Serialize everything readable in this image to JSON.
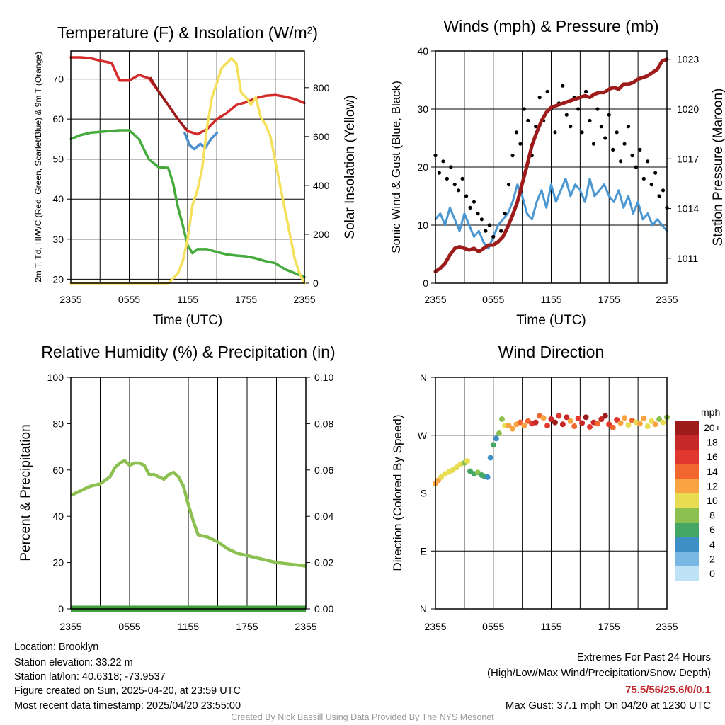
{
  "chart_data": [
    {
      "type": "line",
      "title": "Temperature (F) & Insolation (W/m²)",
      "xlabel": "Time (UTC)",
      "ylabel": "2m T, Td, HI/WC (Red, Green, Scarlet/Blue) & 9m T (Orange)",
      "ylabel2": "Solar Insolation (Yellow)",
      "ylim": [
        19,
        77
      ],
      "yticks": [
        20,
        30,
        40,
        50,
        60,
        70
      ],
      "ylim2": [
        0,
        950
      ],
      "yticks2": [
        0,
        200,
        400,
        600,
        800
      ],
      "x_ticks": [
        "2355",
        "0555",
        "1155",
        "1755",
        "2355"
      ],
      "x_hours": [
        0,
        24
      ],
      "series": [
        {
          "name": "2m T",
          "color": "#d42a2a",
          "axis": "left",
          "x": [
            0,
            1,
            2,
            3,
            4.2,
            5,
            6,
            7,
            8,
            9,
            10,
            11,
            12,
            13,
            14,
            15,
            16,
            17,
            18,
            19,
            20,
            21,
            22,
            23,
            24
          ],
          "y": [
            75.4,
            75.4,
            75.2,
            74.6,
            74.0,
            69.6,
            69.6,
            71.0,
            70.2,
            67.0,
            63.5,
            60.0,
            57.0,
            56.2,
            57.5,
            60.0,
            61.5,
            63.5,
            64.2,
            65.2,
            65.8,
            66.0,
            65.6,
            65.0,
            64.0
          ]
        },
        {
          "name": "Heat Index / Wind Chill",
          "color": "#9e1b1b",
          "axis": "left",
          "x": [
            8.2,
            9,
            10,
            11,
            11.8
          ],
          "y": [
            70.2,
            67.0,
            63.5,
            60.0,
            57.5
          ]
        },
        {
          "name": "2m Td",
          "color": "#45aa3c",
          "axis": "left",
          "x": [
            0,
            1,
            2,
            3,
            4,
            5,
            6,
            7,
            8,
            9,
            10,
            10.5,
            11,
            11.5,
            12,
            12.5,
            13,
            14,
            15,
            16,
            17,
            18,
            19,
            20,
            21,
            22,
            23,
            24
          ],
          "y": [
            55.0,
            56.0,
            56.6,
            56.8,
            57.0,
            57.2,
            57.2,
            55.0,
            50.0,
            48.0,
            47.8,
            44.0,
            38.0,
            33.5,
            28.5,
            26.5,
            27.5,
            27.5,
            26.8,
            26.2,
            25.9,
            25.7,
            25.2,
            24.5,
            24.0,
            22.5,
            21.5,
            20.5
          ]
        },
        {
          "name": "Wind Chill",
          "color": "#4a8fd0",
          "axis": "left",
          "x": [
            11.7,
            12.2,
            12.7,
            13.3,
            13.8,
            14.4,
            15
          ],
          "y": [
            56.5,
            53.5,
            52.5,
            53.8,
            52.8,
            55.0,
            56.5
          ]
        },
        {
          "name": "Solar Insolation",
          "color": "#f4e05a",
          "axis": "right",
          "x": [
            0,
            2,
            4,
            6,
            8,
            10,
            11,
            11.5,
            12,
            12.5,
            13,
            13.5,
            14,
            14.5,
            15,
            15.5,
            16,
            16.5,
            17,
            17.5,
            18,
            18.5,
            19,
            19.5,
            20,
            20.5,
            21,
            21.5,
            22,
            22.5,
            23,
            23.5,
            24
          ],
          "y": [
            0,
            0,
            0,
            0,
            0,
            0,
            40,
            90,
            180,
            320,
            380,
            470,
            640,
            760,
            820,
            880,
            900,
            920,
            900,
            780,
            760,
            730,
            760,
            680,
            650,
            600,
            500,
            400,
            300,
            200,
            100,
            40,
            0
          ]
        }
      ]
    },
    {
      "type": "line",
      "title": "Winds (mph) & Pressure (mb)",
      "xlabel": "Time (UTC)",
      "ylabel": "Sonic Wind & Gust (Blue, Black)",
      "ylabel2": "Station Pressure (Maroon)",
      "ylim": [
        0,
        40
      ],
      "yticks": [
        0,
        10,
        20,
        30,
        40
      ],
      "ylim2": [
        1009.5,
        1023.5
      ],
      "yticks2": [
        1011,
        1014,
        1017,
        1020,
        1023
      ],
      "x_ticks": [
        "2355",
        "0555",
        "1155",
        "1755",
        "2355"
      ],
      "x_hours": [
        0,
        24
      ],
      "series": [
        {
          "name": "Sonic Wind",
          "color": "#4a97d1",
          "style": "line",
          "x": [
            0,
            0.5,
            1,
            1.5,
            2,
            2.5,
            3,
            3.5,
            4,
            4.5,
            5,
            5.5,
            6,
            6.5,
            7,
            7.5,
            8,
            8.5,
            9,
            9.5,
            10,
            10.5,
            11,
            11.5,
            12,
            12.5,
            13,
            13.5,
            14,
            14.5,
            15,
            15.5,
            16,
            16.5,
            17,
            17.5,
            18,
            18.5,
            19,
            19.5,
            20,
            20.5,
            21,
            21.5,
            22,
            22.5,
            23,
            23.5,
            24
          ],
          "y": [
            11,
            12,
            10,
            13,
            11,
            9,
            12,
            10,
            8,
            9,
            7,
            6,
            8,
            10,
            11,
            12,
            14,
            17,
            15,
            12,
            11,
            14,
            16,
            13,
            17,
            14,
            16,
            18,
            15,
            17,
            16,
            14,
            18,
            15,
            16,
            17,
            15,
            14,
            16,
            13,
            15,
            12,
            14,
            11,
            12,
            10,
            11,
            10,
            9
          ]
        },
        {
          "name": "Gust",
          "color": "#000000",
          "style": "scatter",
          "x": [
            0,
            0.4,
            0.8,
            1.2,
            1.6,
            2,
            2.4,
            2.8,
            3.2,
            3.6,
            4,
            4.4,
            4.8,
            5.2,
            5.6,
            6,
            6.4,
            6.8,
            7.2,
            7.6,
            8,
            8.4,
            8.8,
            9.2,
            9.6,
            10,
            10.4,
            10.8,
            11.2,
            11.6,
            12,
            12.4,
            12.8,
            13.2,
            13.6,
            14,
            14.4,
            14.8,
            15.2,
            15.6,
            16,
            16.4,
            16.8,
            17.2,
            17.6,
            18,
            18.4,
            18.8,
            19.2,
            19.6,
            20,
            20.4,
            20.8,
            21.2,
            21.6,
            22,
            22.4,
            22.8,
            23.2,
            23.6,
            24
          ],
          "y": [
            22,
            19,
            21,
            18,
            20,
            17,
            16,
            18,
            15,
            13,
            14,
            12,
            11,
            9,
            10,
            8,
            7,
            9,
            12,
            17,
            22,
            26,
            24,
            30,
            28,
            22,
            27,
            32,
            28,
            33,
            30,
            26,
            31,
            34,
            29,
            27,
            32,
            30,
            26,
            33,
            28,
            24,
            30,
            27,
            25,
            29,
            23,
            26,
            21,
            24,
            27,
            22,
            20,
            23,
            18,
            21,
            17,
            19,
            15,
            16,
            13
          ]
        },
        {
          "name": "Station Pressure",
          "color": "#9e1b1b",
          "style": "line",
          "axis": "right",
          "x": [
            0,
            0.5,
            1,
            1.5,
            2,
            2.5,
            3,
            3.5,
            4,
            4.5,
            5,
            5.5,
            6,
            6.5,
            7,
            7.5,
            8,
            8.5,
            9,
            9.5,
            10,
            10.5,
            11,
            11.5,
            12,
            12.5,
            13,
            13.5,
            14,
            14.5,
            15,
            15.5,
            16,
            16.5,
            17,
            17.5,
            18,
            18.5,
            19,
            19.5,
            20,
            20.5,
            21,
            21.5,
            22,
            22.5,
            23,
            23.5,
            24
          ],
          "y": [
            1010.2,
            1010.4,
            1010.7,
            1011.2,
            1011.6,
            1011.7,
            1011.6,
            1011.5,
            1011.6,
            1011.4,
            1011.6,
            1011.8,
            1011.8,
            1012.0,
            1012.3,
            1012.9,
            1013.6,
            1014.4,
            1015.5,
            1016.6,
            1017.8,
            1018.6,
            1019.3,
            1019.8,
            1020.1,
            1020.2,
            1020.3,
            1020.4,
            1020.5,
            1020.6,
            1020.7,
            1020.8,
            1020.7,
            1020.9,
            1021.0,
            1021.0,
            1021.2,
            1021.3,
            1021.2,
            1021.5,
            1021.5,
            1021.6,
            1021.8,
            1021.9,
            1022.0,
            1022.2,
            1022.4,
            1022.9,
            1023.0
          ]
        }
      ]
    },
    {
      "type": "line",
      "title": "Relative Humidity (%) & Precipitation (in)",
      "ylabel": "Percent & Precipitation",
      "ylim": [
        0,
        100
      ],
      "yticks": [
        0,
        20,
        40,
        60,
        80,
        100
      ],
      "ylim2": [
        0,
        0.1
      ],
      "yticks2": [
        "0.00",
        "0.02",
        "0.04",
        "0.06",
        "0.08",
        "0.10"
      ],
      "x_ticks": [
        "2355",
        "0555",
        "1155",
        "1755",
        "2355"
      ],
      "x_hours": [
        0,
        24
      ],
      "series": [
        {
          "name": "Relative Humidity",
          "color": "#8cc152",
          "x": [
            0,
            1,
            2,
            3,
            4,
            4.5,
            5,
            5.5,
            6,
            6.5,
            7,
            7.5,
            8,
            8.5,
            9,
            9.5,
            10,
            10.5,
            11,
            11.5,
            12,
            12.5,
            13,
            14,
            15,
            16,
            17,
            18,
            19,
            20,
            21,
            22,
            23,
            24
          ],
          "y": [
            49,
            51,
            53,
            54,
            57,
            61,
            63,
            64,
            62,
            63,
            63,
            62,
            58,
            58,
            57,
            56,
            58,
            59,
            57,
            53,
            45,
            38,
            32,
            31,
            29,
            26,
            24,
            23,
            22,
            21,
            20,
            19.5,
            19,
            18.5
          ]
        },
        {
          "name": "Precipitation",
          "color": "#3f9f3f",
          "axis": "right",
          "x": [
            0,
            24
          ],
          "y": [
            0,
            0
          ]
        }
      ]
    },
    {
      "type": "scatter",
      "title": "Wind Direction",
      "ylabel": "Direction (Colored By Speed)",
      "yticks": [
        "N",
        "E",
        "S",
        "W",
        "N"
      ],
      "ylim": [
        0,
        360
      ],
      "x_ticks": [
        "2355",
        "0555",
        "1155",
        "1755",
        "2355"
      ],
      "x_hours": [
        0,
        24
      ],
      "legend_title": "mph",
      "legend": [
        "20+",
        "18",
        "16",
        "14",
        "12",
        "10",
        "8",
        "6",
        "4",
        "2",
        "0"
      ],
      "legend_colors": [
        "#9e1b1b",
        "#c62828",
        "#e0382f",
        "#f2662f",
        "#f8a443",
        "#e8dd52",
        "#8cc152",
        "#45a766",
        "#3f8fc7",
        "#79b7e4",
        "#bfe3f6"
      ],
      "points": {
        "x": [
          0,
          0.3,
          0.6,
          1.0,
          1.4,
          1.8,
          2.2,
          2.6,
          3.0,
          3.3,
          3.6,
          4.0,
          4.4,
          4.8,
          5.1,
          5.4,
          5.7,
          6.0,
          6.3,
          6.6,
          6.9,
          7.2,
          7.6,
          8.0,
          8.4,
          8.8,
          9.2,
          9.6,
          10.0,
          10.4,
          10.8,
          11.2,
          11.6,
          12.0,
          12.4,
          12.8,
          13.2,
          13.6,
          14.0,
          14.4,
          14.8,
          15.2,
          15.6,
          16.0,
          16.4,
          16.8,
          17.2,
          17.6,
          18.0,
          18.4,
          18.8,
          19.2,
          19.6,
          20.0,
          20.4,
          20.8,
          21.2,
          21.6,
          22.0,
          22.4,
          22.8,
          23.2,
          23.6,
          24
        ],
        "dir": [
          195,
          200,
          205,
          210,
          213,
          216,
          220,
          225,
          227,
          230,
          214,
          210,
          212,
          208,
          206,
          205,
          235,
          255,
          265,
          273,
          295,
          285,
          285,
          280,
          287,
          290,
          285,
          292,
          288,
          290,
          300,
          297,
          285,
          295,
          290,
          300,
          287,
          298,
          292,
          284,
          296,
          289,
          298,
          283,
          290,
          288,
          295,
          300,
          287,
          282,
          294,
          289,
          297,
          286,
          293,
          290,
          288,
          296,
          284,
          292,
          287,
          295,
          290,
          298
        ],
        "spd": [
          12,
          12,
          11,
          10,
          10,
          11,
          10,
          10,
          9,
          10,
          7,
          7,
          8,
          7,
          6,
          5,
          4,
          7,
          5,
          8,
          9,
          10,
          12,
          13,
          12,
          15,
          13,
          14,
          16,
          18,
          15,
          13,
          17,
          18,
          20,
          16,
          18,
          19,
          12,
          14,
          17,
          19,
          21,
          16,
          18,
          15,
          18,
          20,
          16,
          14,
          17,
          12,
          13,
          10,
          15,
          11,
          12,
          13,
          10,
          11,
          12,
          9,
          11,
          8
        ]
      }
    }
  ],
  "footer": {
    "location": "Location: Brooklyn",
    "elevation": "Station elevation: 33.22 m",
    "latlon": "Station lat/lon: 40.6318; -73.9537",
    "created": "Figure created on Sun, 2025-04-20, at 23:59 UTC",
    "recent": "Most recent data timestamp: 2025/04/20 23:55:00",
    "extremes_title": "Extremes For Past 24 Hours",
    "extremes_sub": "(High/Low/Max Wind/Precipitation/Snow Depth)",
    "extremes_values": "75.5/56/25.6/0/0.1",
    "max_gust": "Max Gust: 37.1 mph On 04/20 at 1230 UTC",
    "credit": "Created By Nick Bassill Using Data Provided By The NYS Mesonet"
  }
}
